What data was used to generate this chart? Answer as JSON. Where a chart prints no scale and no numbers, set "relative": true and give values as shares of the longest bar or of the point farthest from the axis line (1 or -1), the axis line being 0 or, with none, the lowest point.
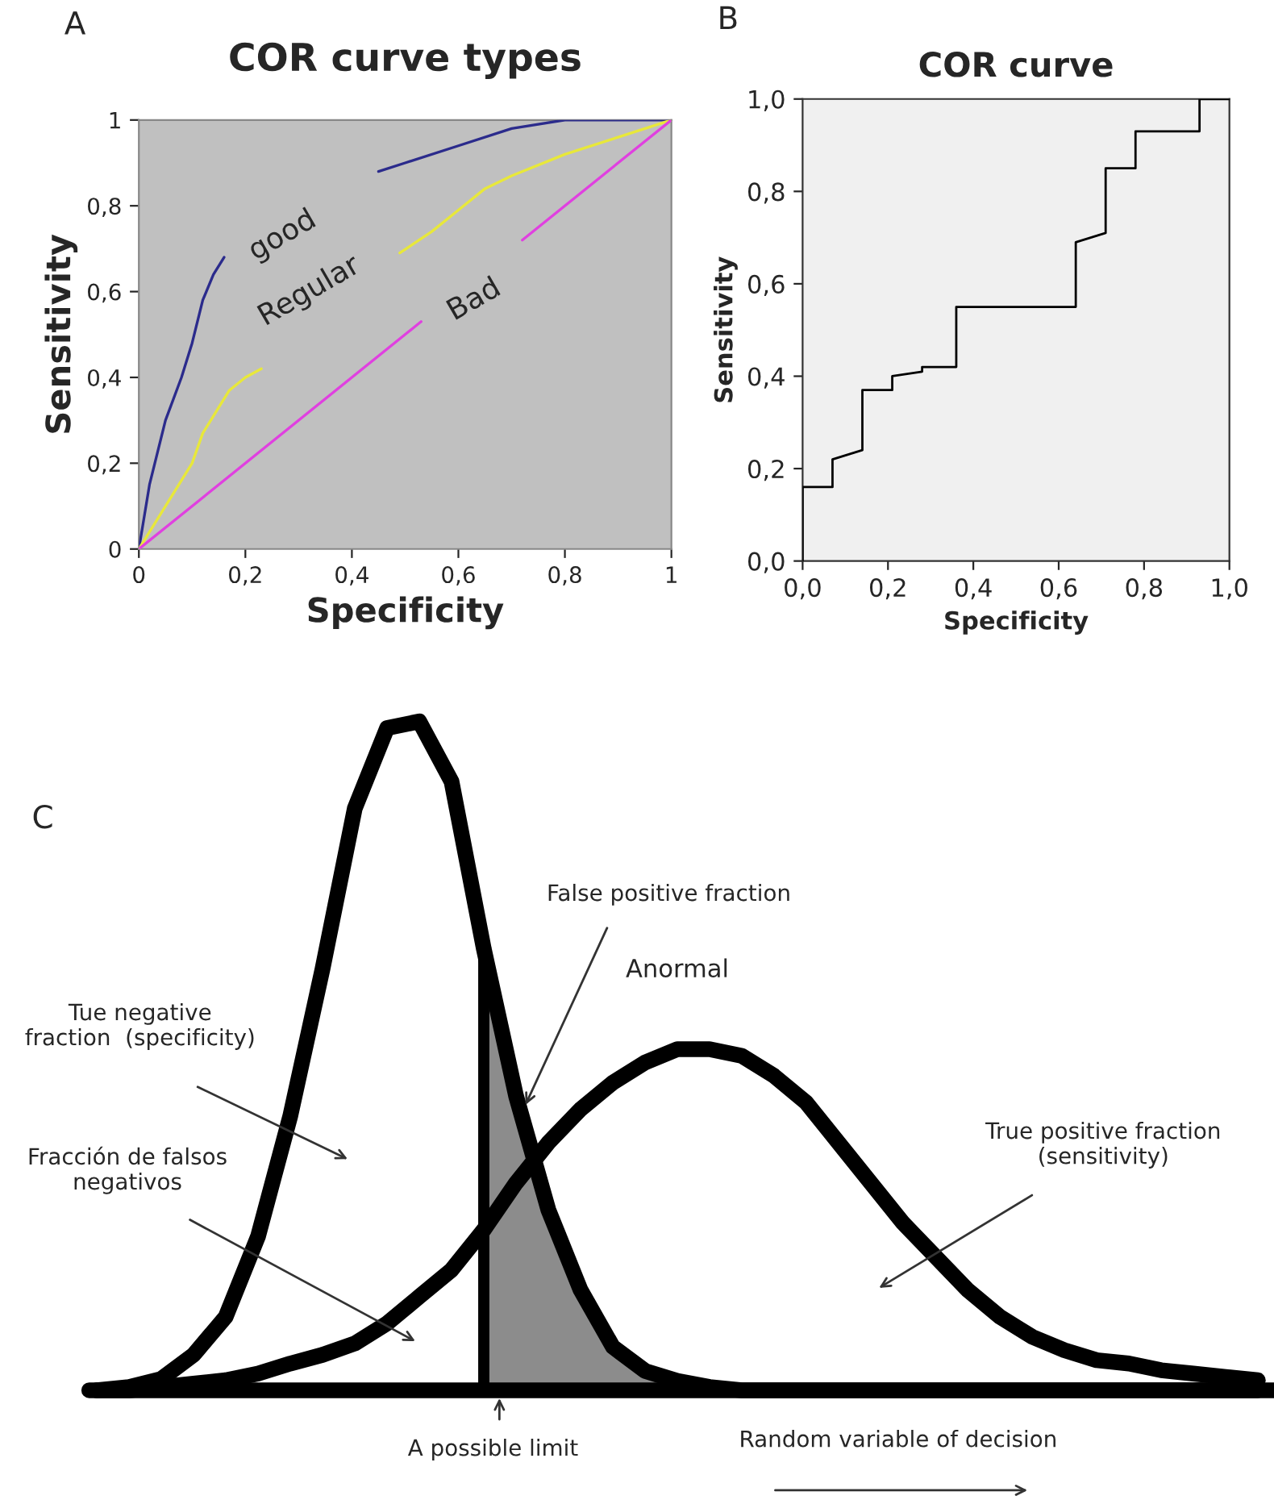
{
  "chart_data": [
    {
      "type": "line",
      "title": "COR curve types",
      "xlabel": "Specificity",
      "ylabel": "Sensitivity",
      "xlim": [
        0,
        1
      ],
      "ylim": [
        0,
        1
      ],
      "xticks": [
        0,
        {
          "value": 0.2,
          "label": "0,2"
        },
        {
          "value": 0.4,
          "label": "0,4"
        },
        {
          "value": 0.6,
          "label": "0,6"
        },
        {
          "value": 0.8,
          "label": "0,8"
        },
        1
      ],
      "yticks": [
        0,
        {
          "value": 0.2,
          "label": "0,2"
        },
        {
          "value": 0.4,
          "label": "0,4"
        },
        {
          "value": 0.6,
          "label": "0,6"
        },
        {
          "value": 0.8,
          "label": "0,8"
        },
        1
      ],
      "grid": false,
      "legend": false,
      "series": [
        {
          "color": "#2b2b8c",
          "x": [
            0,
            0.02,
            0.05,
            0.08,
            0.1,
            0.12,
            0.14,
            0.16,
            0.3,
            0.45,
            0.5,
            0.6,
            0.7,
            0.8,
            1
          ],
          "values": [
            0,
            0.15,
            0.3,
            0.4,
            0.48,
            0.58,
            0.64,
            0.68,
            null,
            0.88,
            0.9,
            0.94,
            0.98,
            1.0,
            1.0
          ]
        },
        {
          "color": "#e8e83a",
          "x": [
            0,
            0.05,
            0.1,
            0.12,
            0.15,
            0.17,
            0.2,
            0.23,
            0.35,
            0.49,
            0.55,
            0.6,
            0.65,
            0.7,
            0.8,
            0.9,
            1
          ],
          "values": [
            0,
            0.1,
            0.2,
            0.27,
            0.33,
            0.37,
            0.4,
            0.42,
            null,
            0.69,
            0.74,
            0.79,
            0.84,
            0.87,
            0.92,
            0.96,
            1.0
          ]
        },
        {
          "color": "#e040e0",
          "x": [
            0,
            0.53,
            0.6,
            0.72,
            1
          ],
          "values": [
            0,
            0.53,
            null,
            0.72,
            1.0
          ]
        }
      ],
      "annotations": [
        "A",
        "good",
        "Regular",
        "Bad"
      ]
    },
    {
      "type": "line",
      "title": "COR curve",
      "xlabel": "Specificity",
      "ylabel": "Sensitivity",
      "xlim": [
        0,
        1
      ],
      "ylim": [
        0,
        1
      ],
      "xticks": [
        {
          "value": 0,
          "label": "0,0"
        },
        {
          "value": 0.2,
          "label": "0,2"
        },
        {
          "value": 0.4,
          "label": "0,4"
        },
        {
          "value": 0.6,
          "label": "0,6"
        },
        {
          "value": 0.8,
          "label": "0,8"
        },
        {
          "value": 1,
          "label": "1,0"
        }
      ],
      "yticks": [
        {
          "value": 0,
          "label": "0,0"
        },
        {
          "value": 0.2,
          "label": "0,2"
        },
        {
          "value": 0.4,
          "label": "0,4"
        },
        {
          "value": 0.6,
          "label": "0,6"
        },
        {
          "value": 0.8,
          "label": "0,8"
        },
        {
          "value": 1,
          "label": "1,0"
        }
      ],
      "grid": false,
      "legend": false,
      "series": [
        {
          "color": "#000000",
          "x": [
            0,
            0,
            0.07,
            0.07,
            0.14,
            0.14,
            0.21,
            0.21,
            0.28,
            0.28,
            0.36,
            0.36,
            0.64,
            0.64,
            0.71,
            0.71,
            0.78,
            0.78,
            0.93,
            0.93,
            1
          ],
          "values": [
            0,
            0.16,
            0.16,
            0.22,
            0.24,
            0.37,
            0.37,
            0.4,
            0.41,
            0.42,
            0.42,
            0.55,
            0.55,
            0.69,
            0.71,
            0.85,
            0.85,
            0.93,
            0.93,
            1.0,
            1.0
          ]
        }
      ],
      "annotations": [
        "B"
      ]
    },
    {
      "type": "line",
      "relative": true,
      "legend": false,
      "categories": [
        null,
        null,
        null,
        null,
        null,
        null,
        null,
        null,
        null,
        null,
        null,
        null,
        null,
        null,
        null,
        null,
        null,
        null,
        null,
        null,
        null,
        null,
        null,
        null,
        null,
        null,
        null,
        null,
        null,
        null,
        null,
        null,
        null,
        null,
        null,
        null,
        null
      ],
      "series": [
        {
          "color": "#000000",
          "values": [
            0,
            0.005,
            0.017,
            0.053,
            0.11,
            0.23,
            0.41,
            0.63,
            0.87,
            0.99,
            1.0,
            0.91,
            0.66,
            0.44,
            0.27,
            0.15,
            0.065,
            0.029,
            0.014,
            0.005,
            0,
            0,
            0,
            0,
            0,
            0,
            0,
            0,
            0,
            0,
            0,
            0,
            0,
            0,
            0,
            0,
            0
          ]
        },
        {
          "name": "Anormal",
          "color": "#000000",
          "values": [
            0,
            0,
            0.005,
            0.01,
            0.015,
            0.025,
            0.04,
            0.053,
            0.07,
            0.1,
            0.14,
            0.18,
            0.24,
            0.31,
            0.37,
            0.42,
            0.46,
            0.49,
            0.51,
            0.51,
            0.5,
            0.47,
            0.43,
            0.37,
            0.31,
            0.25,
            0.2,
            0.15,
            0.11,
            0.08,
            0.06,
            0.045,
            0.04,
            0.03,
            0.025,
            0.02,
            0.015
          ]
        },
        {
          "type": "area",
          "color": "#8c8c8c",
          "values": [
            null,
            null,
            null,
            null,
            null,
            null,
            null,
            null,
            null,
            null,
            null,
            null,
            0.66,
            0.44,
            0.27,
            0.15,
            0.065,
            0.029,
            0.014,
            0.005,
            null,
            null,
            null,
            null,
            null,
            null,
            null,
            null,
            null,
            null,
            null,
            null,
            null,
            null,
            null,
            null,
            null
          ]
        }
      ],
      "annotations": [
        "C",
        "False positive fraction",
        "Tue negative\nfraction  (specificity)",
        "Fracción de falsos\nnegativos",
        "True positive fraction\n(sensitivity)",
        "A possible limit",
        "Random variable of decision"
      ]
    }
  ]
}
